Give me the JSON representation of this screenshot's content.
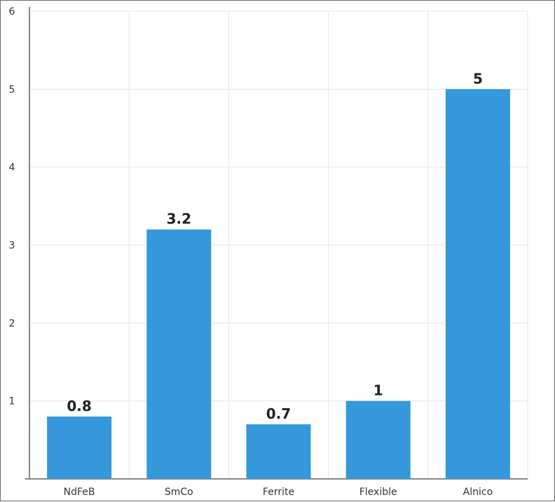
{
  "chart_data": {
    "type": "bar",
    "categories": [
      "NdFeB",
      "SmCo",
      "Ferrite",
      "Flexible",
      "Alnico"
    ],
    "values": [
      0.8,
      3.2,
      0.7,
      1,
      5
    ],
    "data_labels": [
      "0.8",
      "3.2",
      "0.7",
      "1",
      "5"
    ],
    "y_ticks": [
      "1",
      "2",
      "3",
      "4",
      "5",
      "6"
    ],
    "title": "",
    "xlabel": "",
    "ylabel": "",
    "ylim": [
      0,
      6
    ],
    "grid": true,
    "legend": "none",
    "colors": {
      "bar": "#3498db",
      "grid": "#e6e6e6",
      "axis": "#888888"
    }
  }
}
